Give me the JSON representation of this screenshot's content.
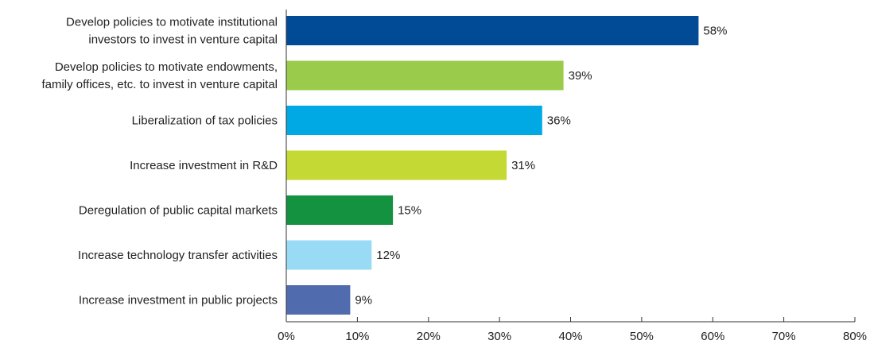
{
  "chart_data": {
    "type": "bar",
    "orientation": "horizontal",
    "title": "",
    "xlabel": "",
    "ylabel": "",
    "xlim": [
      0,
      80
    ],
    "grid": false,
    "legend": "none",
    "categories": [
      [
        "Develop policies to motivate institutional",
        "investors to invest in venture capital"
      ],
      [
        "Develop policies to motivate endowments,",
        "family offices, etc. to invest in venture capital"
      ],
      [
        "Liberalization of tax policies"
      ],
      [
        "Increase investment in R&D"
      ],
      [
        "Deregulation of public capital markets"
      ],
      [
        "Increase technology transfer activities"
      ],
      [
        "Increase investment in public projects"
      ]
    ],
    "values": [
      58,
      39,
      36,
      31,
      15,
      12,
      9
    ],
    "value_labels": [
      "58%",
      "39%",
      "36%",
      "31%",
      "15%",
      "12%",
      "9%"
    ],
    "colors": [
      "#004a96",
      "#9bcb4a",
      "#00a9e4",
      "#c5d934",
      "#15923f",
      "#99dbf5",
      "#516baf"
    ],
    "x_ticks": [
      0,
      10,
      20,
      30,
      40,
      50,
      60,
      70,
      80
    ],
    "x_tick_labels": [
      "0%",
      "10%",
      "20%",
      "30%",
      "40%",
      "50%",
      "60%",
      "70%",
      "80%"
    ],
    "axis_color": "#333333"
  }
}
